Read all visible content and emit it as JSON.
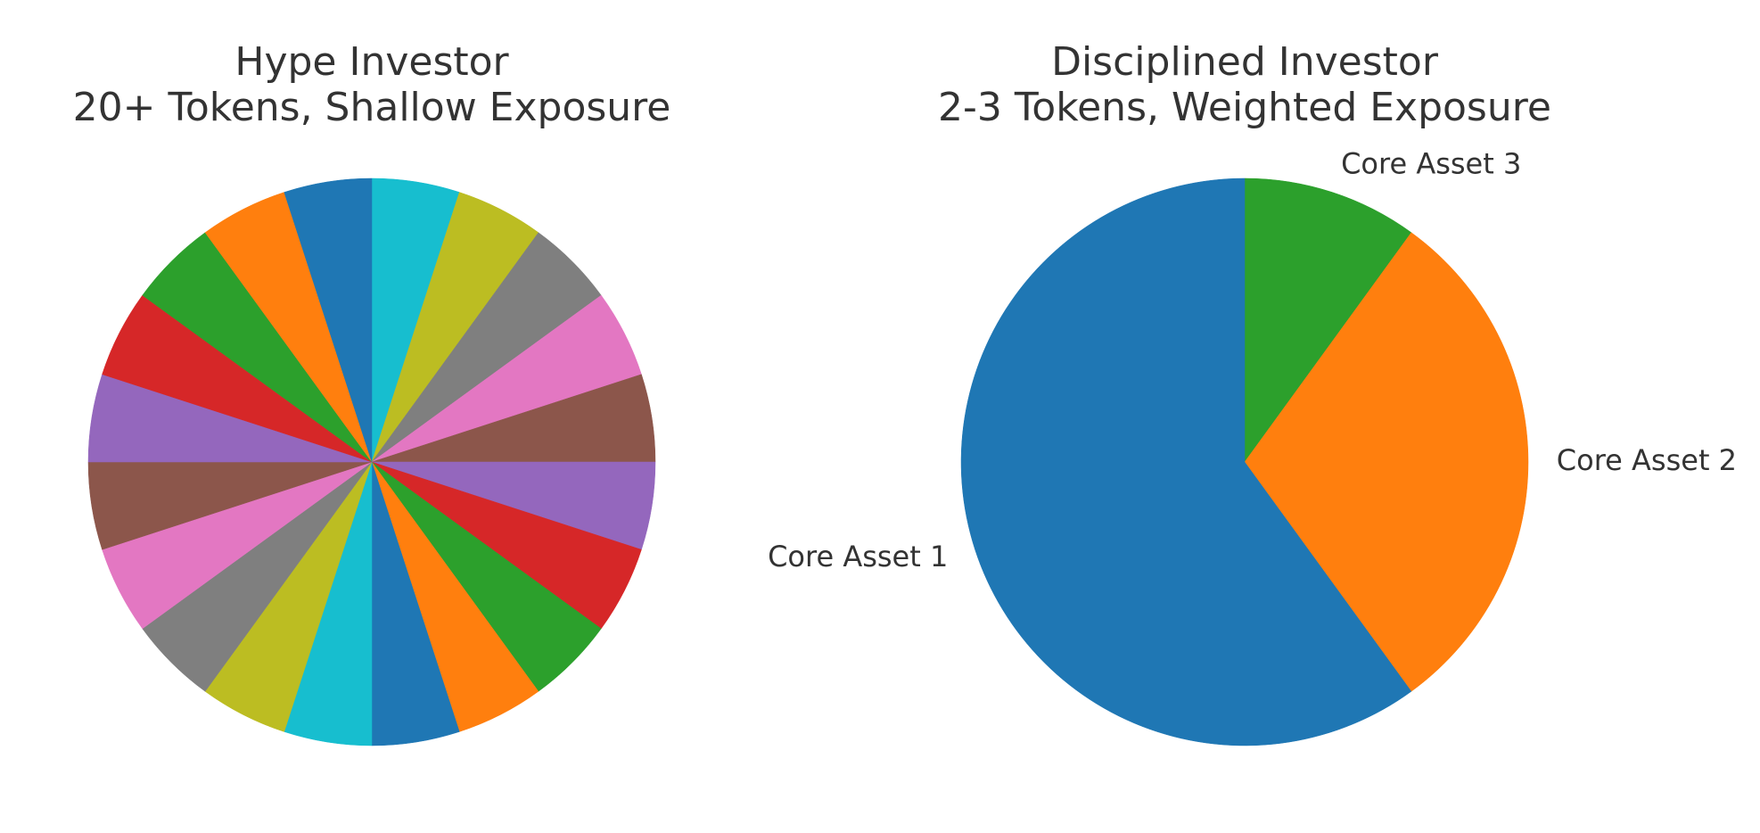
{
  "chart_data": [
    {
      "type": "pie",
      "title": "Hype Investor\n20+ Tokens, Shallow Exposure",
      "slices": [
        {
          "label": "",
          "value": 5,
          "color": "#17becf"
        },
        {
          "label": "",
          "value": 5,
          "color": "#bcbd22"
        },
        {
          "label": "",
          "value": 5,
          "color": "#7f7f7f"
        },
        {
          "label": "",
          "value": 5,
          "color": "#e377c2"
        },
        {
          "label": "",
          "value": 5,
          "color": "#8c564b"
        },
        {
          "label": "",
          "value": 5,
          "color": "#9467bd"
        },
        {
          "label": "",
          "value": 5,
          "color": "#d62728"
        },
        {
          "label": "",
          "value": 5,
          "color": "#2ca02c"
        },
        {
          "label": "",
          "value": 5,
          "color": "#ff7f0e"
        },
        {
          "label": "",
          "value": 5,
          "color": "#1f77b4"
        },
        {
          "label": "",
          "value": 5,
          "color": "#17becf"
        },
        {
          "label": "",
          "value": 5,
          "color": "#bcbd22"
        },
        {
          "label": "",
          "value": 5,
          "color": "#7f7f7f"
        },
        {
          "label": "",
          "value": 5,
          "color": "#e377c2"
        },
        {
          "label": "",
          "value": 5,
          "color": "#8c564b"
        },
        {
          "label": "",
          "value": 5,
          "color": "#9467bd"
        },
        {
          "label": "",
          "value": 5,
          "color": "#d62728"
        },
        {
          "label": "",
          "value": 5,
          "color": "#2ca02c"
        },
        {
          "label": "",
          "value": 5,
          "color": "#ff7f0e"
        },
        {
          "label": "",
          "value": 5,
          "color": "#1f77b4"
        }
      ],
      "start_angle": 90,
      "direction": "clockwise"
    },
    {
      "type": "pie",
      "title": "Disciplined Investor\n2-3 Tokens, Weighted Exposure",
      "slices": [
        {
          "label": "Core Asset 3",
          "value": 10,
          "color": "#2ca02c"
        },
        {
          "label": "Core Asset 2",
          "value": 30,
          "color": "#ff7f0e"
        },
        {
          "label": "Core Asset 1",
          "value": 60,
          "color": "#1f77b4"
        }
      ],
      "start_angle": 90,
      "direction": "clockwise"
    }
  ]
}
